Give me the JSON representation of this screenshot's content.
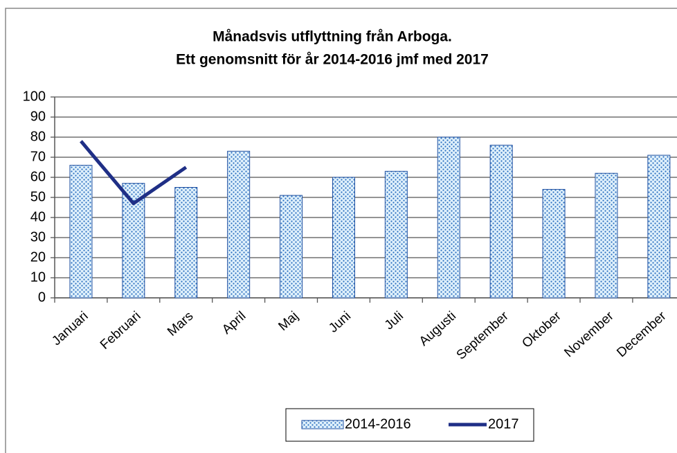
{
  "chart_data": {
    "type": "bar",
    "title": "Månadsvis utflyttning från Arboga.",
    "subtitle": "Ett genomsnitt för år 2014-2016 jmf med 2017",
    "categories": [
      "Januari",
      "Februari",
      "Mars",
      "April",
      "Maj",
      "Juni",
      "Juli",
      "Augusti",
      "September",
      "Oktober",
      "November",
      "December"
    ],
    "series": [
      {
        "name": "2014-2016",
        "type": "bar",
        "color": "#1f4fa0",
        "values": [
          66,
          57,
          55,
          73,
          51,
          60,
          63,
          80,
          76,
          54,
          62,
          71
        ]
      },
      {
        "name": "2017",
        "type": "line",
        "color": "#1f2f86",
        "values": [
          78,
          47,
          65,
          null,
          null,
          null,
          null,
          null,
          null,
          null,
          null,
          null
        ]
      }
    ],
    "ylim": [
      0,
      100
    ],
    "yticks": [
      0,
      10,
      20,
      30,
      40,
      50,
      60,
      70,
      80,
      90,
      100
    ],
    "grid": true,
    "legend": "bottom"
  }
}
